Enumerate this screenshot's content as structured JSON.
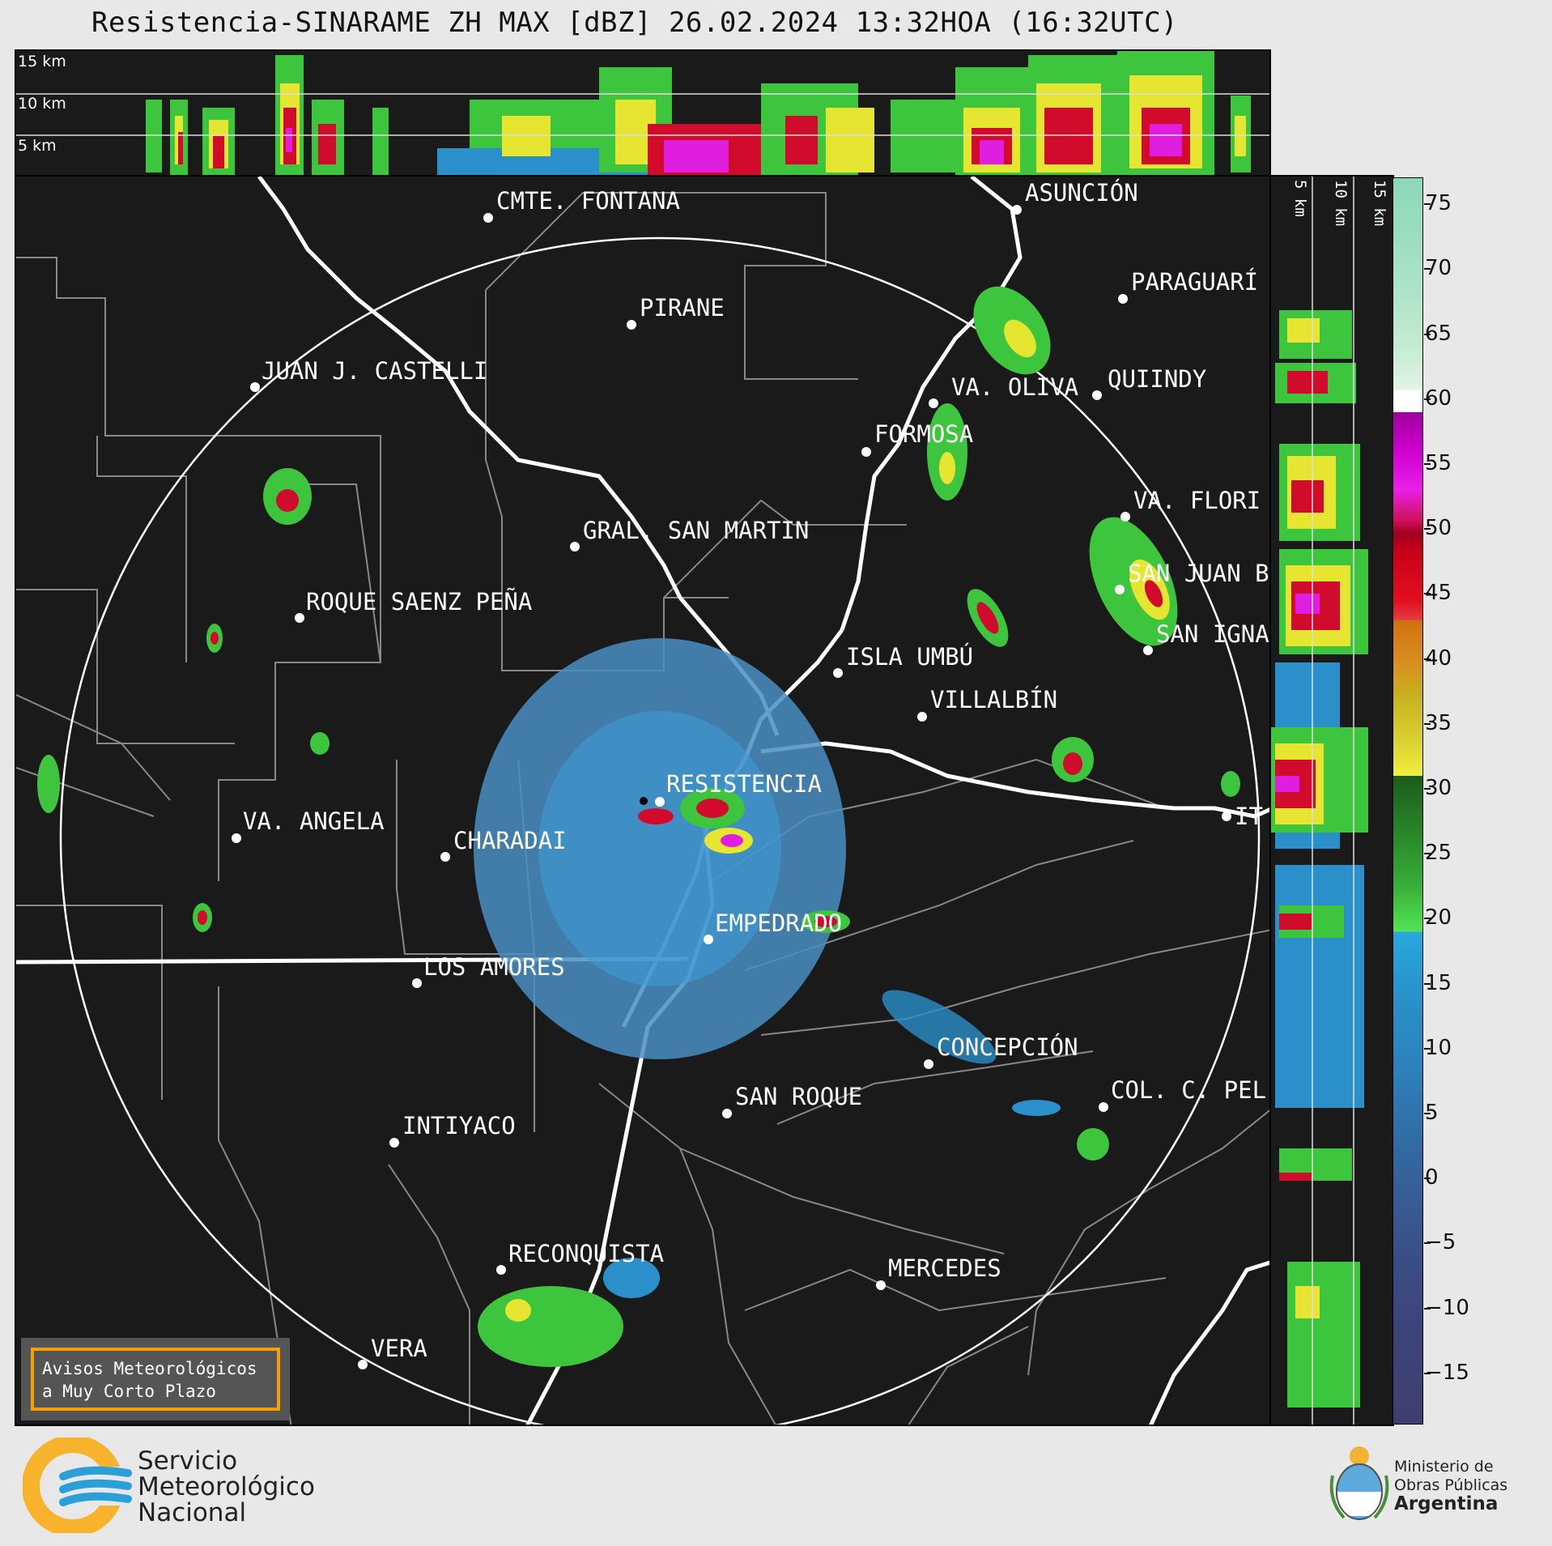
{
  "title": "Resistencia-SINARAME ZH MAX [dBZ] 26.02.2024 13:32HOA (16:32UTC)",
  "top_profile": {
    "height_labels": [
      "15 km",
      "10 km",
      "5 km"
    ]
  },
  "side_profile": {
    "height_labels": [
      "5 km",
      "10 km",
      "15 km"
    ]
  },
  "colorbar": {
    "ticks": [
      "75",
      "70",
      "65",
      "60",
      "55",
      "50",
      "45",
      "40",
      "35",
      "30",
      "25",
      "20",
      "15",
      "10",
      "5",
      "0",
      "−5",
      "−10",
      "−15"
    ],
    "tick_values": [
      75,
      70,
      65,
      60,
      55,
      50,
      45,
      40,
      35,
      30,
      25,
      20,
      15,
      10,
      5,
      0,
      -5,
      -10,
      -15
    ],
    "range": [
      -19,
      77
    ]
  },
  "cities": [
    {
      "name": "CMTE. FONTANA"
    },
    {
      "name": "PIRANE"
    },
    {
      "name": "JUAN J. CASTELLI"
    },
    {
      "name": "GRAL. SAN MARTIN"
    },
    {
      "name": "ROQUE SAENZ PEÑA"
    },
    {
      "name": "VA. ANGELA"
    },
    {
      "name": "CHARADAI"
    },
    {
      "name": "RESISTENCIA"
    },
    {
      "name": "EMPEDRADO"
    },
    {
      "name": "LOS AMORES"
    },
    {
      "name": "INTIYACO"
    },
    {
      "name": "SAN ROQUE"
    },
    {
      "name": "RECONQUISTA"
    },
    {
      "name": "VERA"
    },
    {
      "name": "MERCEDES"
    },
    {
      "name": "CONCEPCIÓN"
    },
    {
      "name": "COL. C. PEL"
    },
    {
      "name": "ISLA UMBÚ"
    },
    {
      "name": "VILLALBÍN"
    },
    {
      "name": "FORMOSA"
    },
    {
      "name": "VA. OLIVA"
    },
    {
      "name": "QUIINDY"
    },
    {
      "name": "ASUNCIÓN"
    },
    {
      "name": "PARAGUARÍ"
    },
    {
      "name": "VA. FLORI"
    },
    {
      "name": "SAN JUAN B"
    },
    {
      "name": "SAN IGNA"
    },
    {
      "name": "IT"
    }
  ],
  "avisos_box": {
    "line1": "Avisos Meteorológicos",
    "line2": "a Muy Corto Plazo"
  },
  "logo_smn": {
    "line1": "Servicio",
    "line2": "Meteorológico",
    "line3": "Nacional"
  },
  "logo_ministerio": {
    "line1": "Ministerio de",
    "line2": "Obras Públicas",
    "line3": "Argentina"
  },
  "colors": {
    "panel_bg": "#1a1a1a",
    "accent_orange": "#f5a000",
    "smn_yellow": "#f7b32b",
    "smn_blue": "#2a9fd8"
  }
}
